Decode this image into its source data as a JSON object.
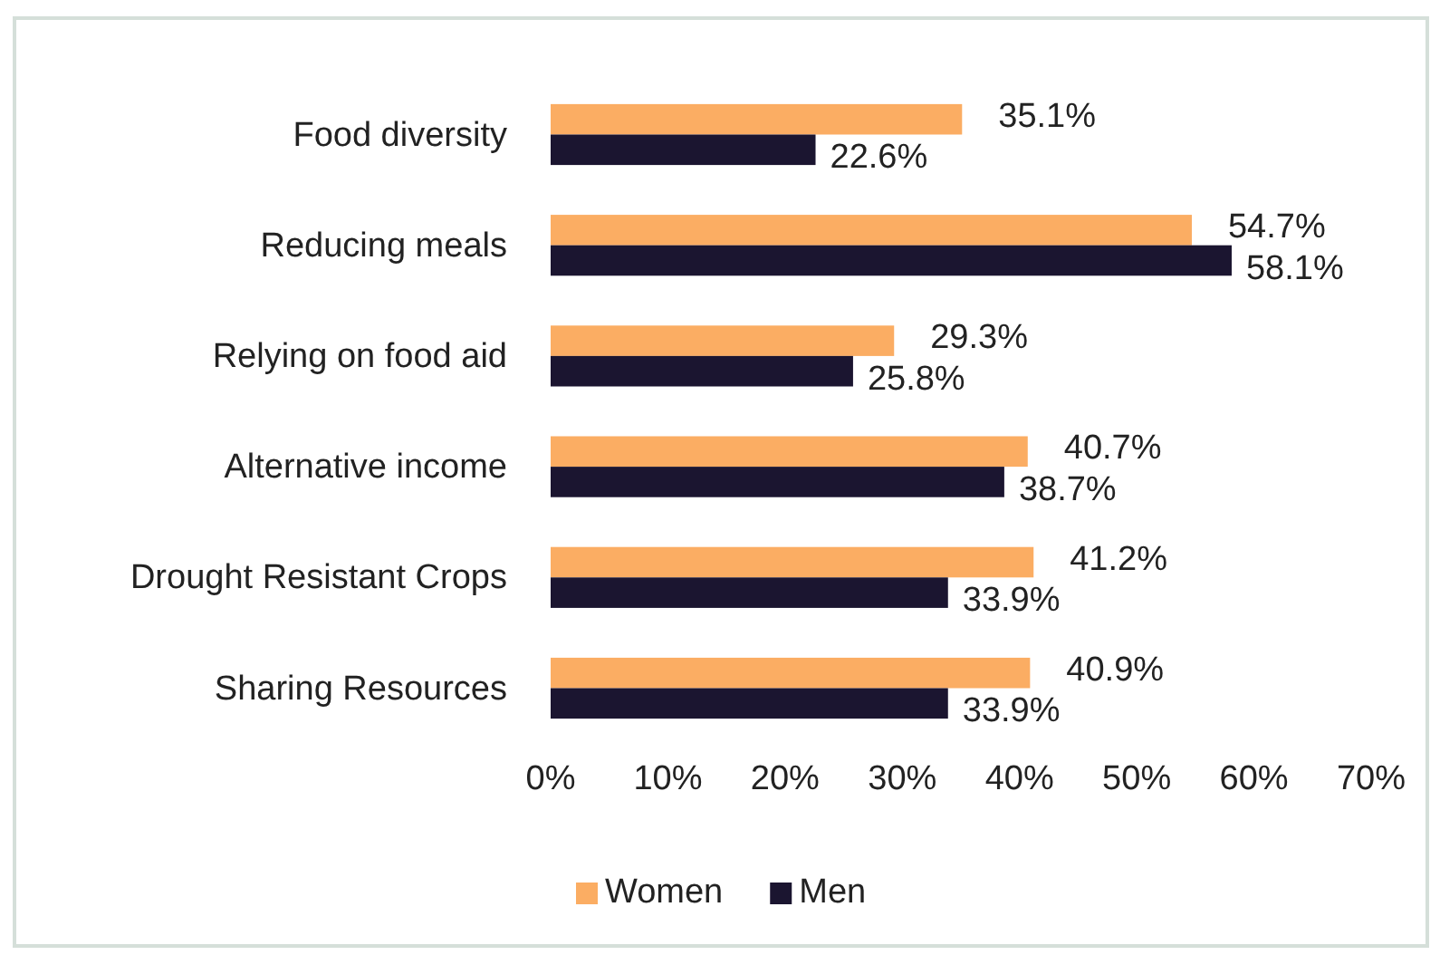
{
  "chart_data": {
    "type": "bar",
    "orientation": "horizontal",
    "categories": [
      "Food diversity",
      "Reducing meals",
      "Relying on food aid",
      "Alternative income",
      "Drought Resistant Crops",
      "Sharing Resources"
    ],
    "series": [
      {
        "name": "Women",
        "color": "#fbad63",
        "values": [
          35.1,
          54.7,
          29.3,
          40.7,
          41.2,
          40.9
        ],
        "value_labels": [
          "35.1%",
          "54.7%",
          "29.3%",
          "40.7%",
          "41.2%",
          "40.9%"
        ]
      },
      {
        "name": "Men",
        "color": "#1b1530",
        "values": [
          22.6,
          58.1,
          25.8,
          38.7,
          33.9,
          33.9
        ],
        "value_labels": [
          "22.6%",
          "58.1%",
          "25.8%",
          "38.7%",
          "33.9%",
          "33.9%"
        ]
      }
    ],
    "xlim": [
      0,
      70
    ],
    "xticks": [
      {
        "value": 0,
        "label": "0%"
      },
      {
        "value": 10,
        "label": "10%"
      },
      {
        "value": 20,
        "label": "20%"
      },
      {
        "value": 30,
        "label": "30%"
      },
      {
        "value": 40,
        "label": "40%"
      },
      {
        "value": 50,
        "label": "50%"
      },
      {
        "value": 60,
        "label": "60%"
      },
      {
        "value": 70,
        "label": "70%"
      }
    ],
    "grid": false,
    "legend": "bottom"
  }
}
